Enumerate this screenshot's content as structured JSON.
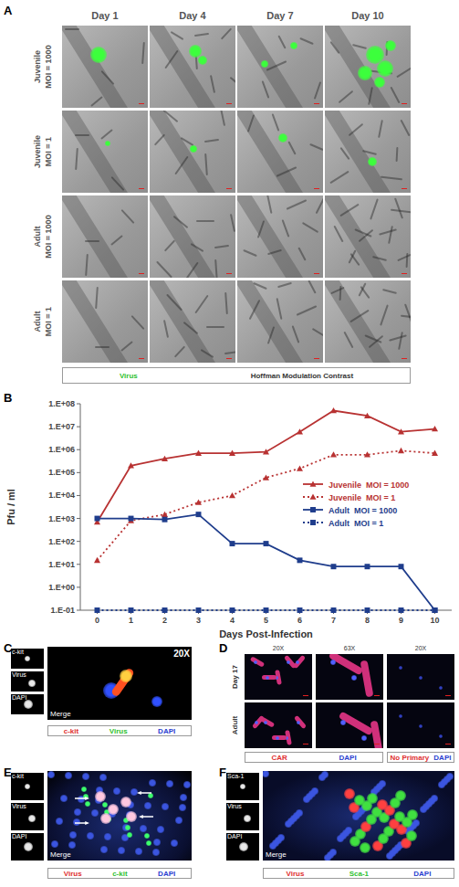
{
  "figure": {
    "panel_a": {
      "label": "A",
      "columns": [
        "Day 1",
        "Day 4",
        "Day 7",
        "Day 10"
      ],
      "rows": [
        [
          "Juvenile",
          "MOI = 1000"
        ],
        [
          "Juvenile",
          "MOI = 1"
        ],
        [
          "Adult",
          "MOI = 1000"
        ],
        [
          "Adult",
          "MOI = 1"
        ]
      ],
      "legend": [
        {
          "text": "Virus",
          "color": "#2fbf2f"
        },
        {
          "text": "Hoffman Modulation Contrast",
          "color": "#333333"
        }
      ]
    },
    "panel_b": {
      "label": "B"
    },
    "panel_c": {
      "label": "C",
      "channels": [
        "c-kit",
        "Virus",
        "DAPI"
      ],
      "merge": "Merge",
      "magnification": "20X",
      "legend": [
        {
          "text": "c-kit",
          "color": "#e03030"
        },
        {
          "text": "Virus",
          "color": "#2fbf2f"
        },
        {
          "text": "DAPI",
          "color": "#2a3fd0"
        }
      ]
    },
    "panel_d": {
      "label": "D",
      "columns": [
        "20X",
        "63X",
        "20X"
      ],
      "rows": [
        "Day 17",
        "Adult"
      ],
      "legend": [
        [
          {
            "text": "CAR",
            "color": "#e03030"
          },
          {
            "text": "DAPI",
            "color": "#2a3fd0"
          }
        ],
        [
          {
            "text": "No Primary",
            "color": "#e03030"
          },
          {
            "text": "DAPI",
            "color": "#2a3fd0"
          }
        ]
      ]
    },
    "panel_e": {
      "label": "E",
      "channels": [
        "c-kit",
        "Virus",
        "DAPI"
      ],
      "merge": "Merge",
      "legend": [
        {
          "text": "Virus",
          "color": "#e03030"
        },
        {
          "text": "c-kit",
          "color": "#2fbf2f"
        },
        {
          "text": "DAPI",
          "color": "#2a3fd0"
        }
      ]
    },
    "panel_f": {
      "label": "F",
      "channels": [
        "Sca-1",
        "Virus",
        "DAPI"
      ],
      "merge": "Merge",
      "legend": [
        {
          "text": "Virus",
          "color": "#e03030"
        },
        {
          "text": "Sca-1",
          "color": "#2fbf2f"
        },
        {
          "text": "DAPI",
          "color": "#2a3fd0"
        }
      ]
    }
  },
  "chart_data": {
    "type": "line",
    "x_label": "Days Post-Infection",
    "y_label": "Pfu / ml",
    "x": [
      0,
      1,
      2,
      3,
      4,
      5,
      6,
      7,
      8,
      9,
      10
    ],
    "xlim": [
      -0.5,
      10.5
    ],
    "xticks": [
      0,
      1,
      2,
      3,
      4,
      5,
      6,
      7,
      8,
      9,
      10
    ],
    "ylim": [
      0.1,
      100000000
    ],
    "yticks": [
      {
        "value": 0.1,
        "label": "1.E-01"
      },
      {
        "value": 1,
        "label": "1.E+00"
      },
      {
        "value": 10,
        "label": "1.E+01"
      },
      {
        "value": 100,
        "label": "1.E+02"
      },
      {
        "value": 1000,
        "label": "1.E+03"
      },
      {
        "value": 10000,
        "label": "1.E+04"
      },
      {
        "value": 100000,
        "label": "1.E+05"
      },
      {
        "value": 1000000,
        "label": "1.E+06"
      },
      {
        "value": 10000000,
        "label": "1.E+07"
      },
      {
        "value": 100000000,
        "label": "1.E+08"
      }
    ],
    "log": "y",
    "grid": false,
    "legend": "right",
    "series": [
      {
        "name": "Juvenile  MOI = 1000",
        "color": "#b83232",
        "marker": "triangle",
        "line_style": "solid",
        "values": [
          700,
          200000,
          400000,
          700000,
          700000,
          800000,
          6000000,
          50000000,
          30000000,
          6000000,
          8000000
        ]
      },
      {
        "name": "Juvenile  MOI = 1",
        "color": "#b83232",
        "marker": "triangle",
        "line_style": "dotted",
        "values": [
          15,
          800,
          1500,
          5000,
          10000,
          60000,
          150000,
          600000,
          600000,
          900000,
          700000
        ]
      },
      {
        "name": "Adult  MOI = 1000",
        "color": "#1f3d8c",
        "marker": "square",
        "line_style": "solid",
        "values": [
          1000,
          1000,
          900,
          1500,
          80,
          80,
          15,
          8,
          8,
          8,
          0.1
        ]
      },
      {
        "name": "Adult  MOI = 1",
        "color": "#1f3d8c",
        "marker": "square",
        "line_style": "dotted",
        "values": [
          0.1,
          0.1,
          0.1,
          0.1,
          0.1,
          0.1,
          0.1,
          0.1,
          0.1,
          0.1,
          0.1
        ]
      }
    ]
  }
}
